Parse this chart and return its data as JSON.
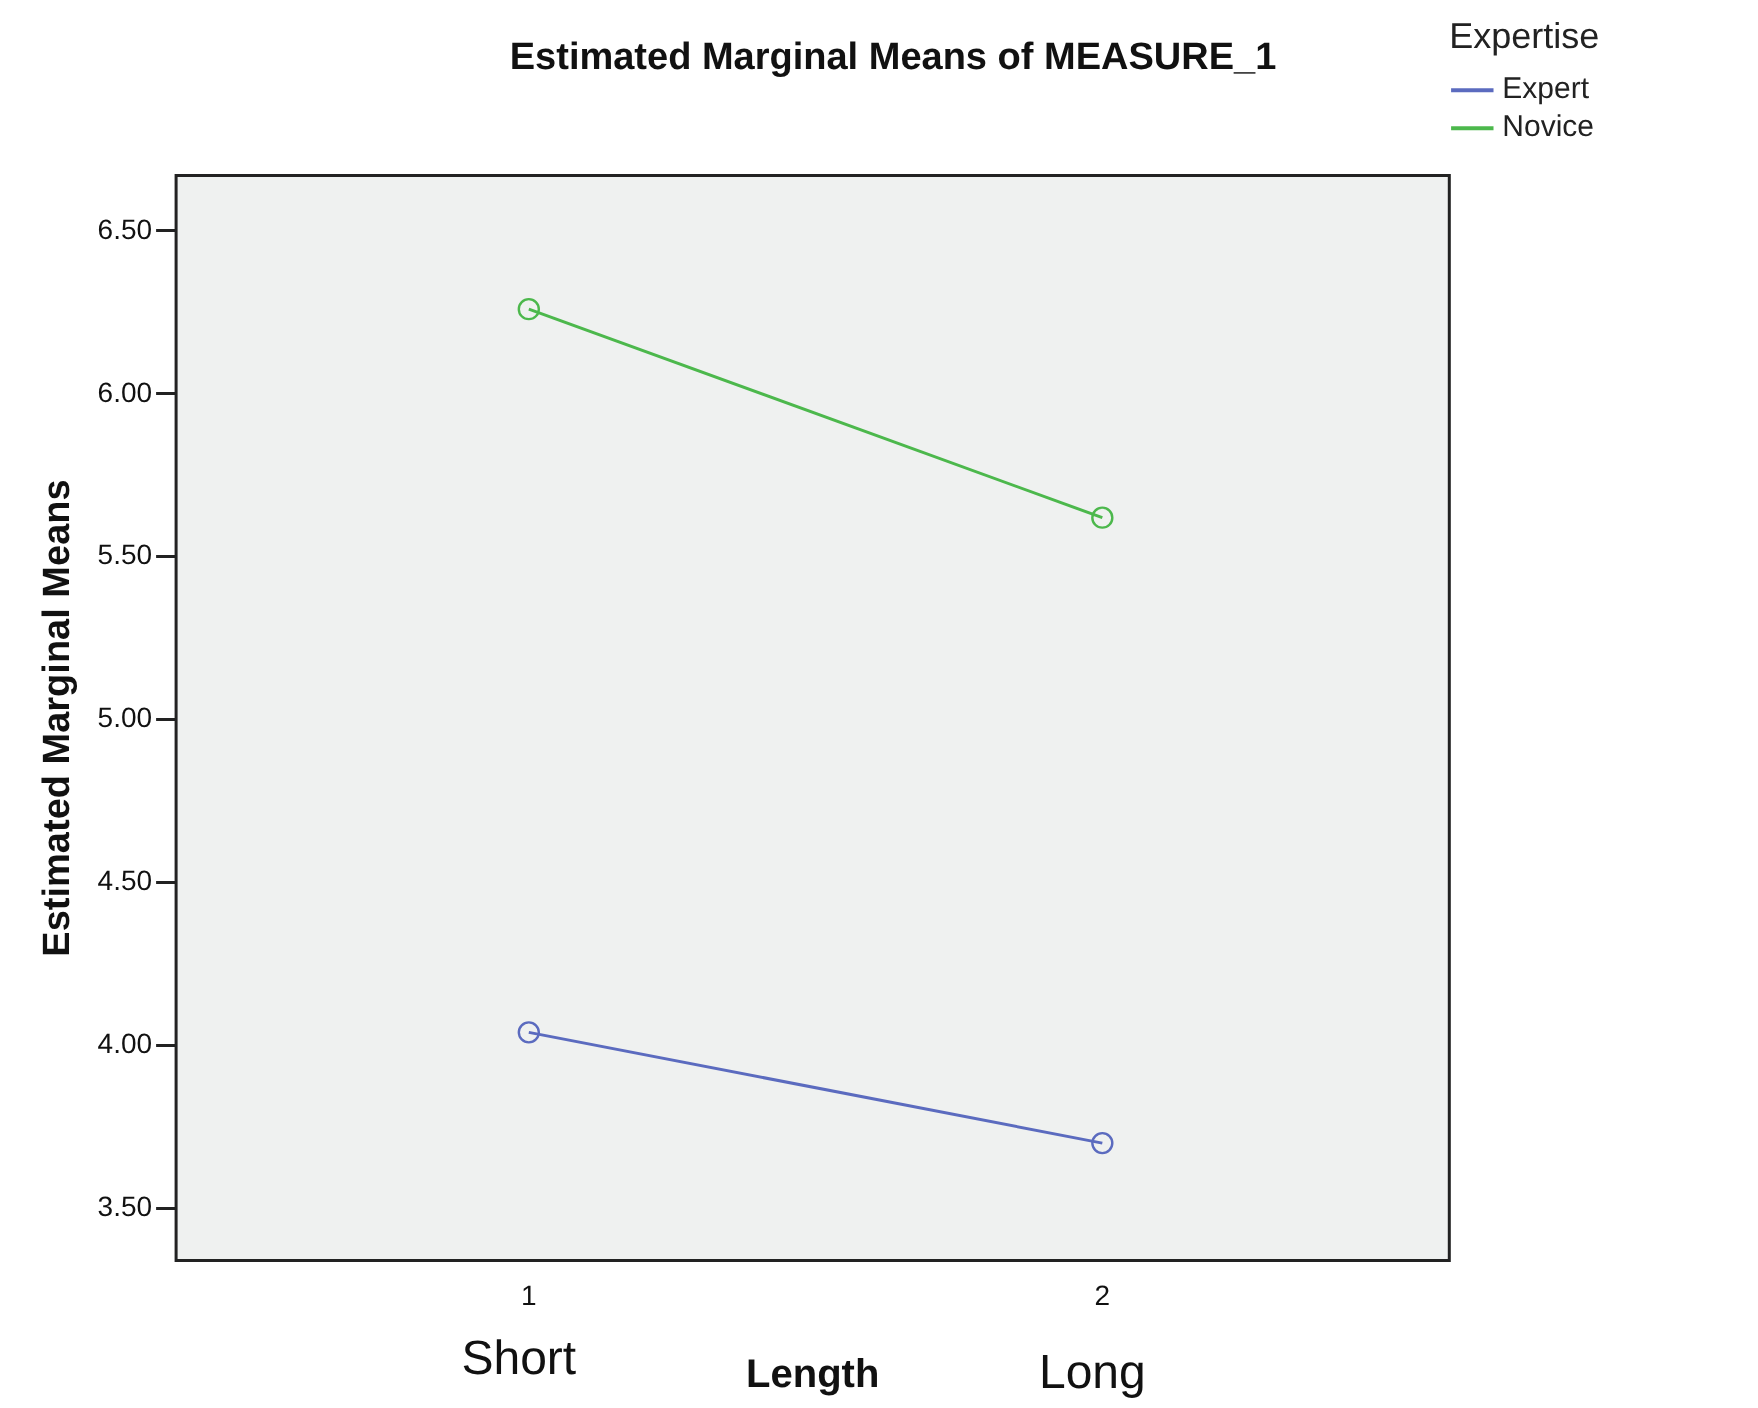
{
  "chart_data": {
    "type": "line",
    "title": "Estimated Marginal Means of MEASURE_1",
    "xlabel": "Length",
    "ylabel": "Estimated Marginal Means",
    "legend_title": "Expertise",
    "categories": [
      "1",
      "2"
    ],
    "series": [
      {
        "name": "Expert",
        "color": "#5b6bbf",
        "values": [
          4.04,
          3.7
        ]
      },
      {
        "name": "Novice",
        "color": "#4cb84c",
        "values": [
          6.26,
          5.62
        ]
      }
    ],
    "ylim": [
      3.34,
      6.67
    ],
    "yticks": [
      {
        "value": 3.5,
        "label": "3.50"
      },
      {
        "value": 4,
        "label": "4.00"
      },
      {
        "value": 4.5,
        "label": "4.50"
      },
      {
        "value": 5,
        "label": "5.00"
      },
      {
        "value": 5.5,
        "label": "5.50"
      },
      {
        "value": 6,
        "label": "6.00"
      },
      {
        "value": 6.5,
        "label": "6.50"
      }
    ],
    "annotations": [
      "Short",
      "Long"
    ],
    "grid": false,
    "legend": "top right",
    "marker": "circle",
    "line_style": "solid"
  }
}
